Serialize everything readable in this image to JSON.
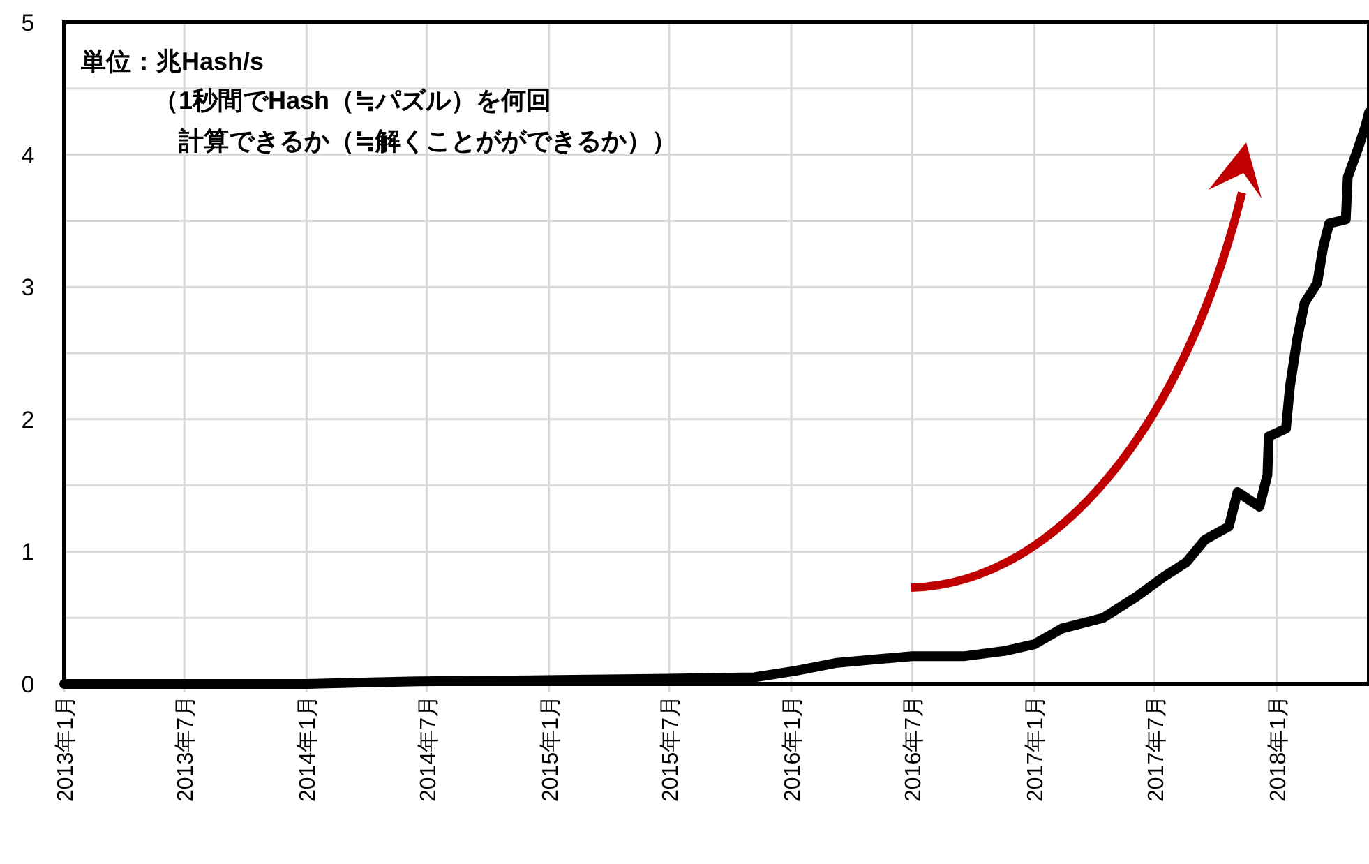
{
  "chart_data": {
    "type": "line",
    "annotations": [
      "単位：兆Hash/s",
      "（1秒間でHash（≒パズル）を何回",
      "計算できるか（≒解くことがができるか））"
    ],
    "x": [
      "2013-01-01",
      "2014-01-01",
      "2014-06-18",
      "2015-01-15",
      "2015-07-01",
      "2015-11-06",
      "2016-01-08",
      "2016-03-10",
      "2016-07-01",
      "2016-09-18",
      "2016-11-18",
      "2017-01-01",
      "2017-02-12",
      "2017-04-15",
      "2017-06-04",
      "2017-07-15",
      "2017-08-18",
      "2017-09-15",
      "2017-10-21",
      "2017-11-03",
      "2017-12-06",
      "2017-12-18",
      "2017-12-20",
      "2018-01-15",
      "2018-01-21",
      "2018-02-01",
      "2018-02-12",
      "2018-03-03",
      "2018-03-12",
      "2018-03-21",
      "2018-04-15",
      "2018-04-18",
      "2018-05-03",
      "2018-05-15",
      "2018-05-20"
    ],
    "series": [
      {
        "color": "#000000",
        "values": [
          0,
          0,
          0.02,
          0.03,
          0.04,
          0.05,
          0.1,
          0.16,
          0.21,
          0.21,
          0.25,
          0.3,
          0.42,
          0.5,
          0.66,
          0.81,
          0.92,
          1.09,
          1.19,
          1.45,
          1.34,
          1.58,
          1.87,
          1.93,
          2.25,
          2.61,
          2.88,
          3.03,
          3.3,
          3.48,
          3.51,
          3.83,
          4.04,
          4.22,
          4.32
        ]
      }
    ],
    "xlim": [
      "2013-01-01",
      "2018-05-20"
    ],
    "xticks": [
      {
        "value": "2013-01-01",
        "label": "2013年1月"
      },
      {
        "value": "2013-07-01",
        "label": "2013年7月"
      },
      {
        "value": "2014-01-01",
        "label": "2014年1月"
      },
      {
        "value": "2014-07-01",
        "label": "2014年7月"
      },
      {
        "value": "2015-01-01",
        "label": "2015年1月"
      },
      {
        "value": "2015-07-01",
        "label": "2015年7月"
      },
      {
        "value": "2016-01-01",
        "label": "2016年1月"
      },
      {
        "value": "2016-07-01",
        "label": "2016年7月"
      },
      {
        "value": "2017-01-01",
        "label": "2017年1月"
      },
      {
        "value": "2017-07-01",
        "label": "2017年7月"
      },
      {
        "value": "2018-01-01",
        "label": "2018年1月"
      }
    ],
    "ylim": [
      0,
      5
    ],
    "yticks": [
      0,
      {
        "value": 0.5,
        "label": null
      },
      1,
      {
        "value": 1.5,
        "label": null
      },
      2,
      {
        "value": 2.5,
        "label": null
      },
      3,
      {
        "value": 3.5,
        "label": null
      },
      4,
      {
        "value": 4.5,
        "label": null
      },
      5
    ],
    "grid": true,
    "marker": "none",
    "line_style": "solid"
  }
}
